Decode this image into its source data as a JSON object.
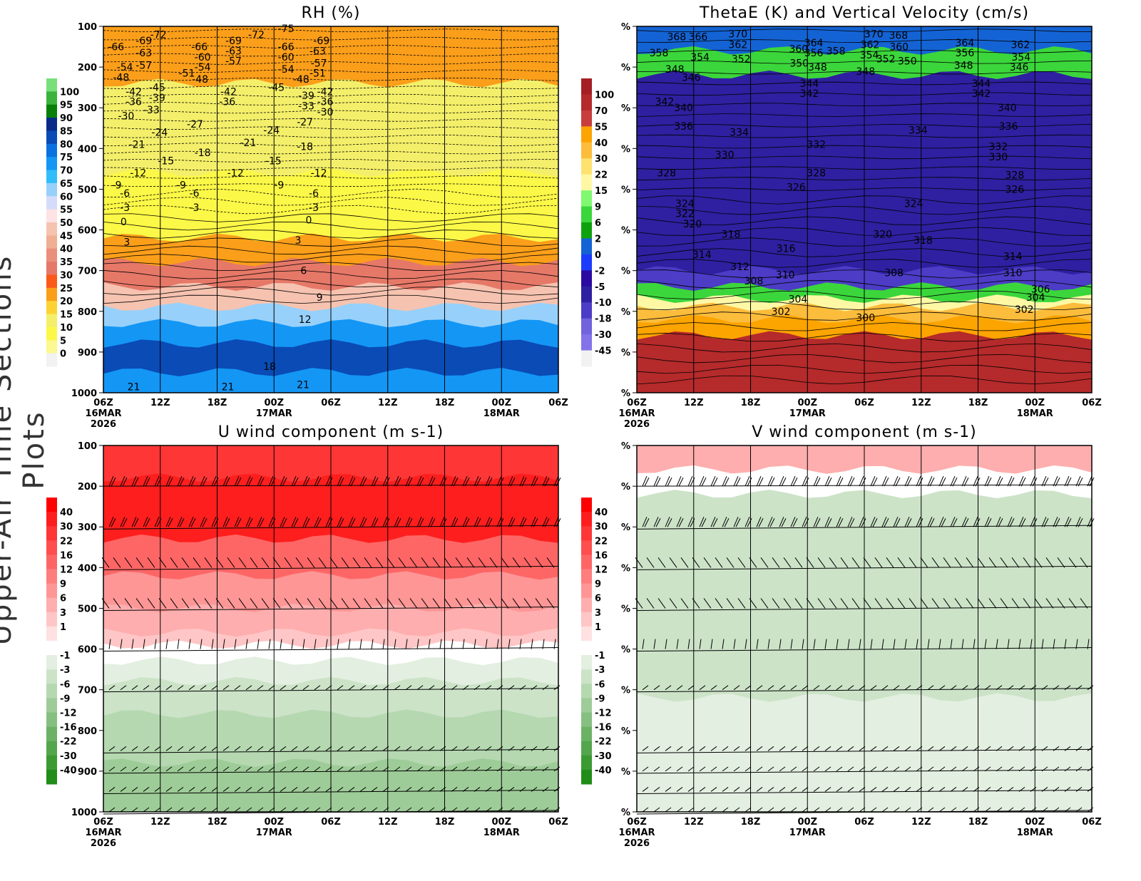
{
  "side_title": "Upper-Air Time Sections Plots",
  "time_ticks": [
    "06Z",
    "12Z",
    "18Z",
    "00Z",
    "06Z",
    "12Z",
    "18Z",
    "00Z",
    "06Z"
  ],
  "date_labels": [
    {
      "tick": 0,
      "lines": [
        "16MAR",
        "2026"
      ]
    },
    {
      "tick": 3,
      "lines": [
        "17MAR"
      ]
    },
    {
      "tick": 7,
      "lines": [
        "18MAR"
      ]
    }
  ],
  "pressure_ticks": [
    100,
    200,
    300,
    400,
    500,
    600,
    700,
    800,
    900,
    1000
  ],
  "chart_data": [
    {
      "type": "heatmap",
      "title": "RH (%)",
      "xlim_hours": [
        0,
        72
      ],
      "ylim_hpa": [
        1000,
        100
      ],
      "y_tick_labels": "pressure",
      "colorbar": {
        "levels": [
          "100",
          "95",
          "90",
          "85",
          "80",
          "75",
          "70",
          "65",
          "60",
          "55",
          "50",
          "45",
          "40",
          "35",
          "30",
          "25",
          "20",
          "15",
          "10",
          "5",
          "0"
        ],
        "colors": [
          "#77e07a",
          "#3cb33c",
          "#078007",
          "#0a2a8a",
          "#0a4bb5",
          "#0a72e0",
          "#1496f5",
          "#32bdfa",
          "#97d1fb",
          "#d5dcfb",
          "#fde3e4",
          "#f6c3b0",
          "#f0ae93",
          "#ea8f7c",
          "#e67868",
          "#fb5a19",
          "#fb9e1a",
          "#fcd332",
          "#f4ef6a",
          "#fcf847",
          "#fbf98f",
          "#f2f2f2"
        ]
      },
      "fill_bands": [
        {
          "p_top": 100,
          "p_bot": 240,
          "value": 22
        },
        {
          "p_top": 240,
          "p_bot": 460,
          "value": 12
        },
        {
          "p_top": 460,
          "p_bot": 620,
          "value": 7
        },
        {
          "p_top": 620,
          "p_bot": 680,
          "value": 22
        },
        {
          "p_top": 680,
          "p_bot": 740,
          "value": 32
        },
        {
          "p_top": 740,
          "p_bot": 790,
          "value": 47
        },
        {
          "p_top": 790,
          "p_bot": 830,
          "value": 62
        },
        {
          "p_top": 830,
          "p_bot": 880,
          "value": 72
        },
        {
          "p_top": 880,
          "p_bot": 950,
          "value": 82
        },
        {
          "p_top": 950,
          "p_bot": 1000,
          "value": 72
        }
      ],
      "contour_labels": [
        [
          "-66",
          2,
          150
        ],
        [
          "-54",
          3.4,
          200
        ],
        [
          "-48",
          2.8,
          225
        ],
        [
          "-69",
          6.4,
          135
        ],
        [
          "-63",
          6.4,
          165
        ],
        [
          "-57",
          6.4,
          195
        ],
        [
          "-72",
          8.7,
          120
        ],
        [
          "-42",
          4.8,
          260
        ],
        [
          "-36",
          4.8,
          285
        ],
        [
          "-30",
          3.6,
          320
        ],
        [
          "-45",
          8.5,
          250
        ],
        [
          "-39",
          8.5,
          275
        ],
        [
          "-33",
          7.6,
          305
        ],
        [
          "-24",
          8.9,
          360
        ],
        [
          "-21",
          5.3,
          390
        ],
        [
          "-15",
          9.9,
          430
        ],
        [
          "-12",
          5.5,
          460
        ],
        [
          "-9",
          2.1,
          490
        ],
        [
          "-6",
          3.4,
          510
        ],
        [
          "-3",
          3.4,
          545
        ],
        [
          "0",
          3.2,
          580
        ],
        [
          "3",
          3.7,
          630
        ],
        [
          "-66",
          15.2,
          150
        ],
        [
          "-60",
          15.7,
          175
        ],
        [
          "-54",
          15.7,
          200
        ],
        [
          "-51",
          13.2,
          215
        ],
        [
          "-48",
          15.3,
          230
        ],
        [
          "-27",
          14.5,
          340
        ],
        [
          "-18",
          15.7,
          410
        ],
        [
          "-9",
          12.3,
          490
        ],
        [
          "-6",
          14.4,
          510
        ],
        [
          "-3",
          14.4,
          545
        ],
        [
          "-69",
          20.6,
          135
        ],
        [
          "-63",
          20.6,
          160
        ],
        [
          "-57",
          20.6,
          185
        ],
        [
          "-42",
          19.8,
          260
        ],
        [
          "-36",
          19.6,
          285
        ],
        [
          "-21",
          22.9,
          385
        ],
        [
          "-12",
          20.9,
          460
        ],
        [
          "-72",
          24.2,
          120
        ],
        [
          "-75",
          28.9,
          105
        ],
        [
          "-66",
          28.9,
          150
        ],
        [
          "-60",
          28.9,
          175
        ],
        [
          "-54",
          28.9,
          205
        ],
        [
          "-45",
          27.4,
          250
        ],
        [
          "-24",
          26.6,
          355
        ],
        [
          "-15",
          26.9,
          430
        ],
        [
          "-9",
          27.8,
          490
        ],
        [
          "-48",
          31.3,
          230
        ],
        [
          "-39",
          32.1,
          270
        ],
        [
          "-33",
          32.1,
          295
        ],
        [
          "-27",
          31.9,
          335
        ],
        [
          "-18",
          31.9,
          395
        ],
        [
          "-69",
          34.5,
          135
        ],
        [
          "-63",
          33.9,
          160
        ],
        [
          "-57",
          34.1,
          190
        ],
        [
          "-51",
          33.9,
          215
        ],
        [
          "-42",
          35.1,
          260
        ],
        [
          "-36",
          35.1,
          285
        ],
        [
          "-30",
          35.1,
          310
        ],
        [
          "-12",
          34.1,
          460
        ],
        [
          "-6",
          33.3,
          510
        ],
        [
          "-3",
          33.3,
          545
        ],
        [
          "0",
          32.5,
          575
        ],
        [
          "3",
          30.8,
          625
        ],
        [
          "6",
          31.7,
          700
        ],
        [
          "9",
          34.2,
          765
        ],
        [
          "12",
          31.9,
          820
        ],
        [
          "18",
          26.3,
          935
        ],
        [
          "21",
          31.6,
          980
        ],
        [
          "21",
          19.7,
          985
        ],
        [
          "21",
          4.8,
          985
        ]
      ]
    },
    {
      "type": "heatmap",
      "title": "ThetaE (K) and Vertical Velocity (cm/s)",
      "xlim_hours": [
        0,
        72
      ],
      "ylim_hpa": [
        1000,
        100
      ],
      "y_tick_labels": "%",
      "colorbar": {
        "levels": [
          "100",
          "70",
          "55",
          "40",
          "30",
          "22",
          "15",
          "9",
          "6",
          "2",
          "0",
          "-2",
          "-5",
          "-10",
          "-18",
          "-30",
          "-45"
        ],
        "colors": [
          "#a52024",
          "#b52a2b",
          "#c83e3e",
          "#fca400",
          "#fcbc3c",
          "#fde26f",
          "#fef8a5",
          "#80f870",
          "#3bd63b",
          "#0fa20f",
          "#1463d4",
          "#1c3cfc",
          "#2a0aa0",
          "#2e20a0",
          "#4c3cc6",
          "#7262dc",
          "#8472e8",
          "#f2f2f2"
        ]
      },
      "fill_bands": [
        {
          "p_top": 100,
          "p_bot": 160,
          "value": 1
        },
        {
          "p_top": 160,
          "p_bot": 220,
          "value": 8
        },
        {
          "p_top": 220,
          "p_bot": 700,
          "value": -8
        },
        {
          "p_top": 700,
          "p_bot": 740,
          "value": -12
        },
        {
          "p_top": 740,
          "p_bot": 770,
          "value": 8
        },
        {
          "p_top": 770,
          "p_bot": 790,
          "value": 20
        },
        {
          "p_top": 790,
          "p_bot": 820,
          "value": 35
        },
        {
          "p_top": 820,
          "p_bot": 860,
          "value": 50
        },
        {
          "p_top": 860,
          "p_bot": 1000,
          "value": 80
        }
      ],
      "contour_labels": [
        [
          "368",
          6.3,
          125
        ],
        [
          "366",
          9.7,
          125
        ],
        [
          "370",
          16,
          118
        ],
        [
          "362",
          16,
          145
        ],
        [
          "358",
          3.5,
          165
        ],
        [
          "354",
          10,
          175
        ],
        [
          "352",
          16.5,
          180
        ],
        [
          "348",
          6,
          205
        ],
        [
          "346",
          8.6,
          225
        ],
        [
          "360",
          25.6,
          155
        ],
        [
          "364",
          28,
          140
        ],
        [
          "356",
          28,
          165
        ],
        [
          "350",
          25.7,
          190
        ],
        [
          "348",
          28.6,
          200
        ],
        [
          "358",
          31.5,
          160
        ],
        [
          "370",
          37.5,
          118
        ],
        [
          "368",
          41.4,
          122
        ],
        [
          "362",
          36.9,
          145
        ],
        [
          "360",
          41.5,
          150
        ],
        [
          "354",
          36.8,
          170
        ],
        [
          "352",
          39.4,
          180
        ],
        [
          "350",
          42.8,
          185
        ],
        [
          "348",
          36.2,
          210
        ],
        [
          "364",
          51.9,
          140
        ],
        [
          "356",
          51.9,
          165
        ],
        [
          "348",
          51.7,
          195
        ],
        [
          "362",
          60.7,
          145
        ],
        [
          "354",
          60.8,
          175
        ],
        [
          "346",
          60.5,
          200
        ],
        [
          "344",
          27.3,
          240
        ],
        [
          "342",
          27.3,
          265
        ],
        [
          "344",
          54.5,
          240
        ],
        [
          "342",
          54.5,
          265
        ],
        [
          "340",
          58.6,
          300
        ],
        [
          "342",
          4.4,
          285
        ],
        [
          "340",
          7.4,
          300
        ],
        [
          "336",
          7.4,
          345
        ],
        [
          "334",
          16.2,
          360
        ],
        [
          "334",
          44.5,
          355
        ],
        [
          "336",
          58.8,
          345
        ],
        [
          "332",
          28.4,
          390
        ],
        [
          "332",
          57.2,
          395
        ],
        [
          "330",
          13.9,
          415
        ],
        [
          "330",
          57.2,
          420
        ],
        [
          "328",
          4.7,
          460
        ],
        [
          "328",
          28.4,
          460
        ],
        [
          "328",
          59.8,
          465
        ],
        [
          "326",
          25.2,
          495
        ],
        [
          "326",
          59.8,
          500
        ],
        [
          "324",
          7.6,
          535
        ],
        [
          "324",
          43.8,
          535
        ],
        [
          "322",
          7.6,
          560
        ],
        [
          "320",
          8.8,
          585
        ],
        [
          "318",
          14.9,
          610
        ],
        [
          "318",
          45.3,
          625
        ],
        [
          "320",
          38.9,
          610
        ],
        [
          "316",
          23.6,
          645
        ],
        [
          "314",
          10.3,
          660
        ],
        [
          "314",
          59.5,
          665
        ],
        [
          "312",
          16.3,
          690
        ],
        [
          "310",
          23.5,
          710
        ],
        [
          "310",
          59.5,
          705
        ],
        [
          "308",
          18.5,
          725
        ],
        [
          "308",
          40.7,
          705
        ],
        [
          "306",
          63.9,
          745
        ],
        [
          "304",
          25.5,
          770
        ],
        [
          "304",
          63.1,
          765
        ],
        [
          "302",
          22.8,
          800
        ],
        [
          "302",
          61.3,
          795
        ],
        [
          "300",
          36.2,
          815
        ]
      ]
    },
    {
      "type": "heatmap",
      "title": "U wind component (m s-1)",
      "xlim_hours": [
        0,
        72
      ],
      "ylim_hpa": [
        1000,
        100
      ],
      "y_tick_labels": "pressure",
      "colorbar": {
        "levels": [
          "40",
          "30",
          "22",
          "16",
          "12",
          "9",
          "6",
          "3",
          "1",
          "",
          "-1",
          "-3",
          "-6",
          "-9",
          "-12",
          "-16",
          "-22",
          "-30",
          "-40"
        ],
        "colors": [
          "#fe0000",
          "#fe1e1e",
          "#fe3636",
          "#fe4e4e",
          "#fe6666",
          "#fe7e7e",
          "#fe9696",
          "#feaeae",
          "#fec6c6",
          "#fee1e1",
          "#ffffff",
          "#e3efe0",
          "#cce3c8",
          "#b5d8b0",
          "#9ecc98",
          "#86c081",
          "#6cb265",
          "#54a64c",
          "#3c9a33",
          "#208d18"
        ]
      },
      "fill_bands": [
        {
          "p_top": 100,
          "p_bot": 180,
          "value": 25
        },
        {
          "p_top": 180,
          "p_bot": 330,
          "value": 35
        },
        {
          "p_top": 330,
          "p_bot": 420,
          "value": 14
        },
        {
          "p_top": 420,
          "p_bot": 500,
          "value": 8
        },
        {
          "p_top": 500,
          "p_bot": 560,
          "value": 4
        },
        {
          "p_top": 560,
          "p_bot": 590,
          "value": 2
        },
        {
          "p_top": 590,
          "p_bot": 630,
          "value": 0
        },
        {
          "p_top": 630,
          "p_bot": 680,
          "value": -2
        },
        {
          "p_top": 680,
          "p_bot": 760,
          "value": -5
        },
        {
          "p_top": 760,
          "p_bot": 880,
          "value": -8
        },
        {
          "p_top": 880,
          "p_bot": 1000,
          "value": -10
        }
      ],
      "barb_levels": [
        200,
        300,
        400,
        500,
        600,
        700,
        850,
        900,
        950,
        1000
      ]
    },
    {
      "type": "heatmap",
      "title": "V wind component (m s-1)",
      "xlim_hours": [
        0,
        72
      ],
      "ylim_hpa": [
        1000,
        100
      ],
      "y_tick_labels": "%",
      "colorbar": {
        "same_as": "U wind component"
      },
      "fill_bands": [
        {
          "p_top": 100,
          "p_bot": 160,
          "value": 4
        },
        {
          "p_top": 160,
          "p_bot": 220,
          "value": 0
        },
        {
          "p_top": 220,
          "p_bot": 400,
          "value": -4
        },
        {
          "p_top": 400,
          "p_bot": 500,
          "value": -5
        },
        {
          "p_top": 500,
          "p_bot": 720,
          "value": -3
        },
        {
          "p_top": 720,
          "p_bot": 800,
          "value": -2
        },
        {
          "p_top": 800,
          "p_bot": 900,
          "value": -1.5
        },
        {
          "p_top": 900,
          "p_bot": 1000,
          "value": -2.5
        }
      ],
      "barb_levels": [
        200,
        300,
        400,
        500,
        600,
        700,
        850,
        900,
        950,
        1000
      ]
    }
  ]
}
